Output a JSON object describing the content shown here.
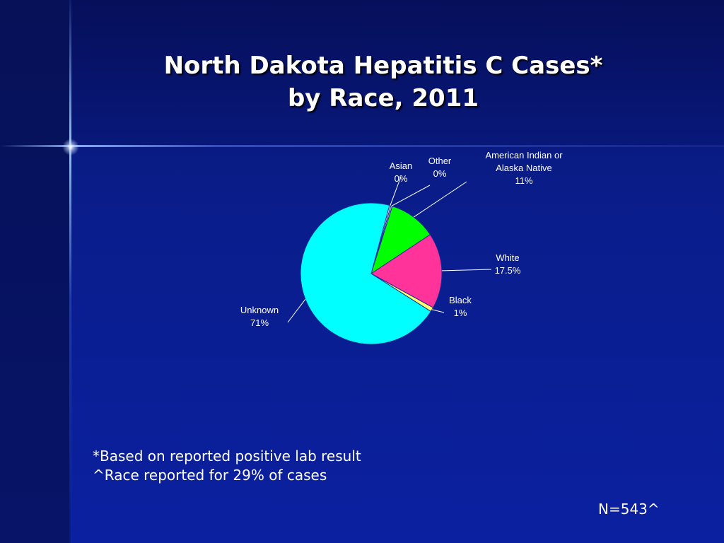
{
  "title": {
    "line1": "North Dakota Hepatitis C Cases*",
    "line2": "by Race, 2011"
  },
  "chart_data": {
    "type": "pie",
    "title": "North Dakota Hepatitis C Cases* by Race, 2011",
    "slices": [
      {
        "label": "Asian",
        "value": 0,
        "display": "0%",
        "color": "#ffffff"
      },
      {
        "label": "Other",
        "value": 0,
        "display": "0%",
        "color": "#cccccc"
      },
      {
        "label": "American Indian or Alaska Native",
        "label_lines": [
          "American Indian or",
          "Alaska Native"
        ],
        "value": 11,
        "display": "11%",
        "color": "#00ff00"
      },
      {
        "label": "White",
        "value": 17.5,
        "display": "17.5%",
        "color": "#ff3399"
      },
      {
        "label": "Black",
        "value": 1,
        "display": "1%",
        "color": "#ffff66"
      },
      {
        "label": "Unknown",
        "value": 71,
        "display": "71%",
        "color": "#00ffff"
      }
    ]
  },
  "notes": {
    "line1": "*Based on reported positive lab result",
    "line2": "^Race reported for 29% of cases"
  },
  "n_value": "N=543^"
}
